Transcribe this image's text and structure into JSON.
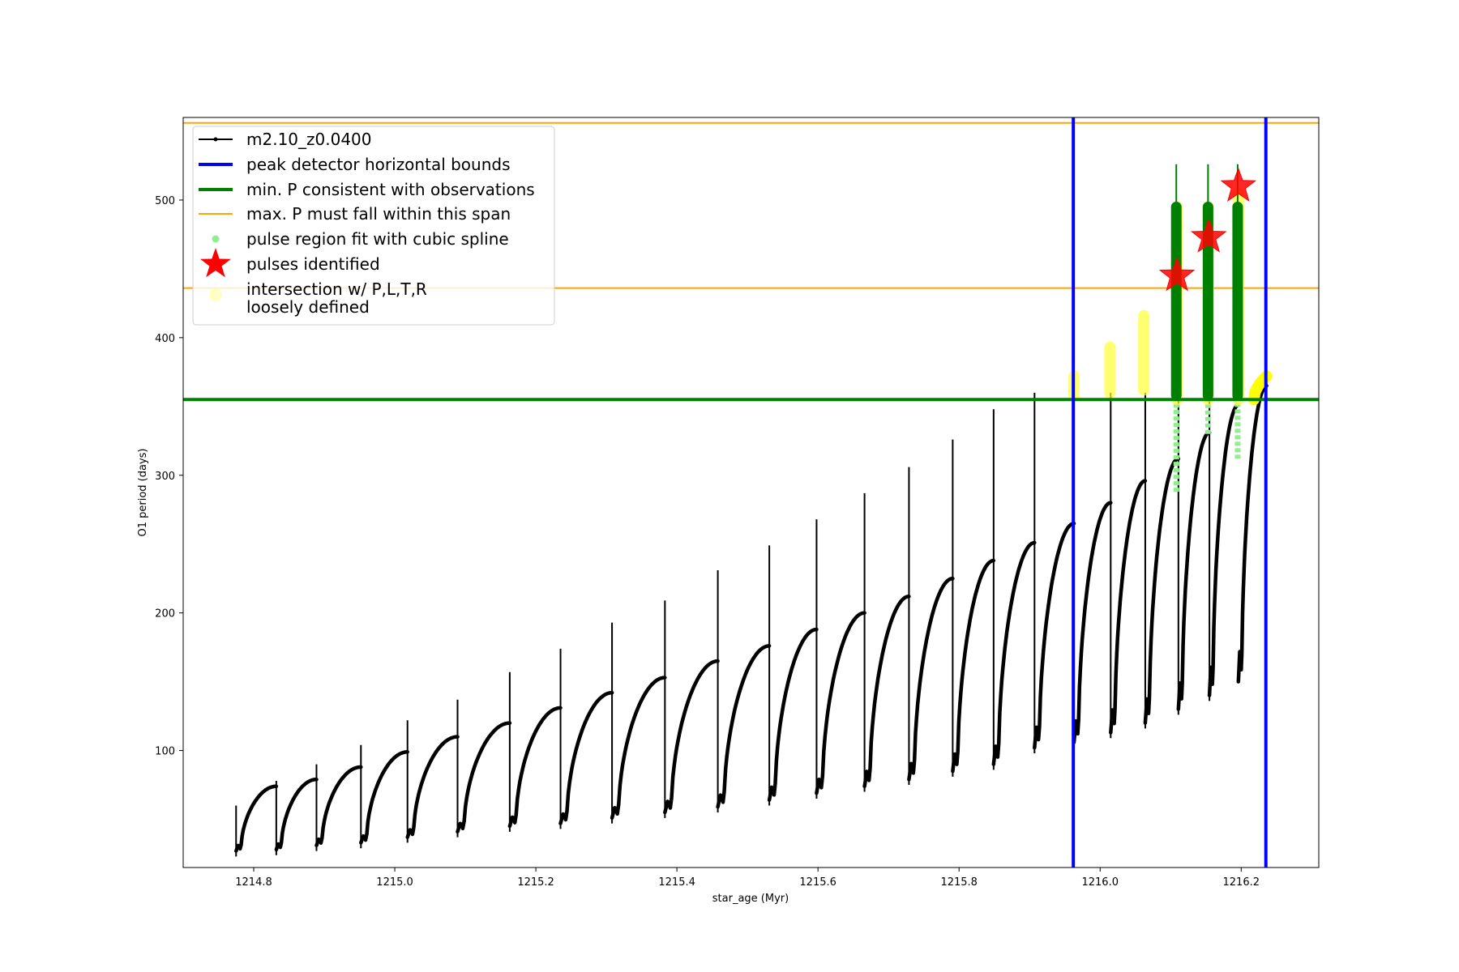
{
  "chart_data": {
    "type": "scatter",
    "title": "",
    "xlabel": "star_age (Myr)",
    "ylabel": "O1 period (days)",
    "xlim": [
      1214.7,
      1216.31
    ],
    "ylim": [
      15,
      560
    ],
    "xticks": [
      1214.8,
      1215.0,
      1215.2,
      1215.4,
      1215.6,
      1215.8,
      1216.0,
      1216.2
    ],
    "xtick_labels": [
      "1214.8",
      "1215.0",
      "1215.2",
      "1215.4",
      "1215.6",
      "1215.8",
      "1216.0",
      "1216.2"
    ],
    "yticks": [
      100,
      200,
      300,
      400,
      500
    ],
    "ytick_labels": [
      "100",
      "200",
      "300",
      "400",
      "500"
    ],
    "grid": false,
    "legend_position": "top-left",
    "legend": [
      {
        "label": "m2.10_z0.0400",
        "marker": "line-dot",
        "color": "#000000"
      },
      {
        "label": "peak detector horizontal bounds",
        "marker": "line",
        "color": "#0000ff"
      },
      {
        "label": "min. P consistent with observations",
        "marker": "line",
        "color": "#008000"
      },
      {
        "label": "max. P must fall within this span",
        "marker": "thin-line",
        "color": "#ffa500"
      },
      {
        "label": "pulse region fit with cubic spline",
        "marker": "dot",
        "color": "#90ee90"
      },
      {
        "label": "pulses identified",
        "marker": "star",
        "color": "#ff0000"
      },
      {
        "label": "intersection w/ P,L,T,R",
        "label2": "loosely defined",
        "marker": "big-dot",
        "color": "#ffff99"
      }
    ],
    "series_name": "m2.10_z0.0400",
    "pulses": [
      {
        "start": 1214.775,
        "min": 27,
        "max": 74,
        "spike": 60
      },
      {
        "start": 1214.832,
        "min": 28,
        "max": 79,
        "spike": 78
      },
      {
        "start": 1214.889,
        "min": 31,
        "max": 88,
        "spike": 90
      },
      {
        "start": 1214.952,
        "min": 33,
        "max": 99,
        "spike": 104
      },
      {
        "start": 1215.018,
        "min": 37,
        "max": 110,
        "spike": 122
      },
      {
        "start": 1215.089,
        "min": 41,
        "max": 120,
        "spike": 137
      },
      {
        "start": 1215.163,
        "min": 45,
        "max": 131,
        "spike": 157
      },
      {
        "start": 1215.235,
        "min": 47,
        "max": 142,
        "spike": 174
      },
      {
        "start": 1215.308,
        "min": 51,
        "max": 153,
        "spike": 193
      },
      {
        "start": 1215.383,
        "min": 55,
        "max": 165,
        "spike": 209
      },
      {
        "start": 1215.458,
        "min": 59,
        "max": 176,
        "spike": 231
      },
      {
        "start": 1215.531,
        "min": 64,
        "max": 188,
        "spike": 249
      },
      {
        "start": 1215.598,
        "min": 69,
        "max": 200,
        "spike": 268
      },
      {
        "start": 1215.666,
        "min": 74,
        "max": 212,
        "spike": 287
      },
      {
        "start": 1215.729,
        "min": 79,
        "max": 225,
        "spike": 306
      },
      {
        "start": 1215.791,
        "min": 85,
        "max": 238,
        "spike": 326
      },
      {
        "start": 1215.849,
        "min": 90,
        "max": 251,
        "spike": 348
      },
      {
        "start": 1215.907,
        "min": 102,
        "max": 265,
        "spike": 372
      },
      {
        "start": 1215.963,
        "min": 106,
        "max": 280,
        "spike": 393
      },
      {
        "start": 1216.015,
        "min": 113,
        "max": 296,
        "spike": 417
      },
      {
        "start": 1216.064,
        "min": 120,
        "max": 312,
        "spike": 525
      },
      {
        "start": 1216.111,
        "min": 130,
        "max": 331,
        "spike": 525
      },
      {
        "start": 1216.155,
        "min": 140,
        "max": 351,
        "spike": 525
      },
      {
        "start": 1216.196,
        "min": 150,
        "max": 365,
        "spike": 0
      }
    ],
    "peak_detector_bounds_x": [
      1215.962,
      1216.235
    ],
    "min_period_consistent": 355,
    "max_period_span": [
      436,
      556
    ],
    "spline_fit_regions": [
      {
        "x": 1216.108,
        "y_low": 288,
        "y_high": 495
      },
      {
        "x": 1216.153,
        "y_low": 330,
        "y_high": 495
      },
      {
        "x": 1216.195,
        "y_low": 312,
        "y_high": 495
      }
    ],
    "pulses_identified": [
      {
        "x": 1216.109,
        "y": 445
      },
      {
        "x": 1216.154,
        "y": 473
      },
      {
        "x": 1216.196,
        "y": 510
      }
    ],
    "intersection_regions": [
      {
        "x": 1215.963,
        "y_low": 358,
        "y_high": 372
      },
      {
        "x": 1216.014,
        "y_low": 360,
        "y_high": 393
      },
      {
        "x": 1216.062,
        "y_low": 362,
        "y_high": 416
      },
      {
        "x": 1216.109,
        "y_low": 355,
        "y_high": 495
      },
      {
        "x": 1216.153,
        "y_low": 355,
        "y_high": 495
      },
      {
        "x": 1216.196,
        "y_low": 355,
        "y_high": 505
      }
    ],
    "final_intersection_curve": {
      "x_start": 1216.218,
      "x_end": 1216.236,
      "y_start": 355,
      "y_end": 372
    }
  }
}
